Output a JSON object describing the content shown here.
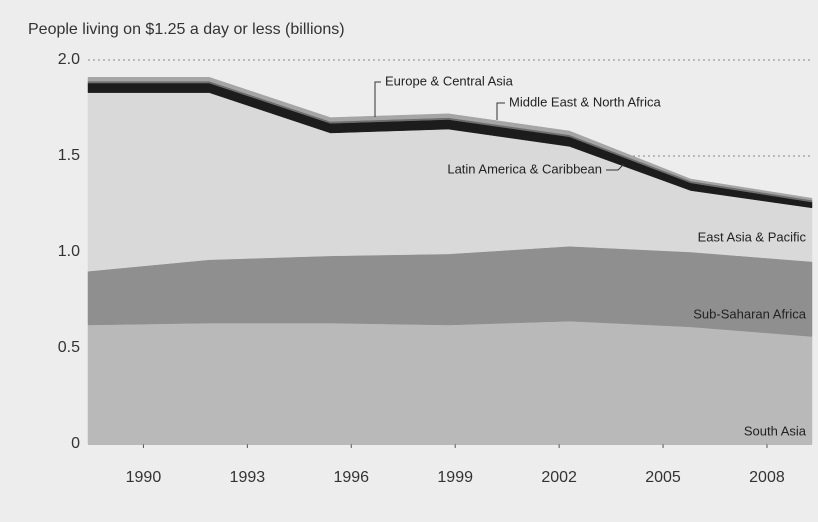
{
  "chart_data": {
    "type": "stacked-area",
    "title": "People living on $1.25 a day or less (billions)",
    "x": [
      1988.4,
      1991.9,
      1995.4,
      1998.8,
      2002.3,
      2005.8,
      2009.3
    ],
    "xlim": [
      1988.4,
      2009.3
    ],
    "xticks": [
      1990,
      1993,
      1996,
      1999,
      2002,
      2005,
      2008
    ],
    "ylim": [
      0,
      2
    ],
    "yticks": [
      0,
      0.5,
      {
        "value": 1,
        "label": "1.0"
      },
      1.5,
      {
        "value": 2,
        "label": "2.0"
      }
    ],
    "grid": true,
    "series": [
      {
        "name": "South Asia",
        "color": "#b9b9b9",
        "values": [
          0.62,
          0.63,
          0.63,
          0.62,
          0.64,
          0.61,
          0.56
        ]
      },
      {
        "name": "Sub-Saharan Africa",
        "color": "#8f8f8f",
        "values": [
          0.28,
          0.33,
          0.35,
          0.37,
          0.39,
          0.39,
          0.39
        ]
      },
      {
        "name": "East Asia & Pacific",
        "color": "#d9d9d9",
        "values": [
          0.93,
          0.87,
          0.64,
          0.65,
          0.52,
          0.32,
          0.28
        ]
      },
      {
        "name": "Latin America & Caribbean",
        "color": "#1c1c1c",
        "values": [
          0.05,
          0.05,
          0.05,
          0.05,
          0.05,
          0.04,
          0.03
        ]
      },
      {
        "name": "Middle East & North Africa",
        "color": "#6e6e6e",
        "values": [
          0.01,
          0.01,
          0.01,
          0.01,
          0.01,
          0.01,
          0.01
        ]
      },
      {
        "name": "Europe & Central Asia",
        "color": "#a5a5a5",
        "values": [
          0.02,
          0.02,
          0.02,
          0.02,
          0.02,
          0.01,
          0.01
        ]
      }
    ]
  }
}
